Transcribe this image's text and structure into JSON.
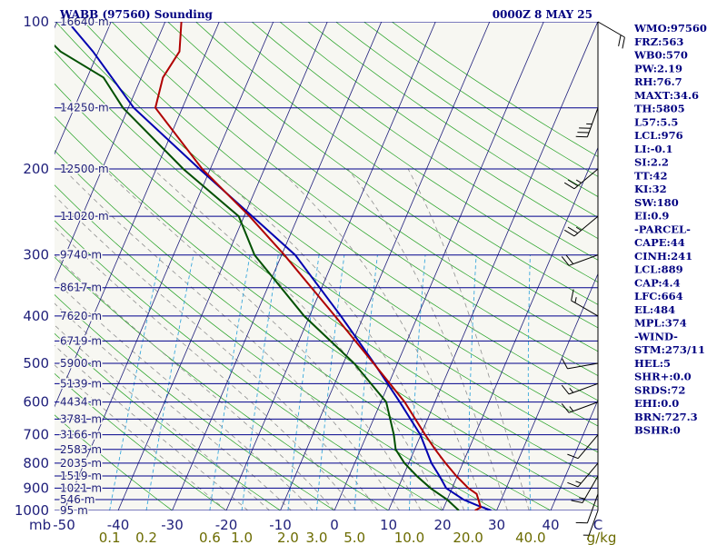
{
  "header": {
    "station": "WABB (97560) Sounding",
    "time": "0000Z  8 MAY 25"
  },
  "colors": {
    "axes": "#000060",
    "isobar": "#00008b",
    "isotherm": "#1e1e7a",
    "dry_adiabat": "#22a022",
    "moist_adiabat": "#909090",
    "mixing_ratio": "#3aa8dc",
    "temperature": "#b00000",
    "dewpoint": "#005000",
    "parcel": "#0000b0",
    "labels_left": "#1e1e7a",
    "labels_mix": "#6b6b00",
    "indices_text": "#000080"
  },
  "chart_data": {
    "type": "skew-t",
    "pressure_ticks": [
      100,
      200,
      300,
      400,
      500,
      600,
      700,
      800,
      900,
      1000
    ],
    "pressure_unit_label": "mb",
    "isobar_heights": [
      {
        "p": 100,
        "label": "16640 m"
      },
      {
        "p": 150,
        "label": "14250 m"
      },
      {
        "p": 200,
        "label": "12500 m"
      },
      {
        "p": 250,
        "label": "11020 m"
      },
      {
        "p": 300,
        "label": "9740 m"
      },
      {
        "p": 350,
        "label": "8617 m"
      },
      {
        "p": 400,
        "label": "7620 m"
      },
      {
        "p": 450,
        "label": "6719 m"
      },
      {
        "p": 500,
        "label": "5900 m"
      },
      {
        "p": 550,
        "label": "5139 m"
      },
      {
        "p": 600,
        "label": "4434 m"
      },
      {
        "p": 650,
        "label": "3781 m"
      },
      {
        "p": 700,
        "label": "3166 m"
      },
      {
        "p": 750,
        "label": "2583 m"
      },
      {
        "p": 800,
        "label": "2035 m"
      },
      {
        "p": 850,
        "label": "1519 m"
      },
      {
        "p": 900,
        "label": "1021 m"
      },
      {
        "p": 950,
        "label": "546 m"
      },
      {
        "p": 1000,
        "label": "95 m"
      }
    ],
    "temperature_ticks": [
      "-50",
      "-40",
      "-30",
      "-20",
      "-10",
      "0",
      "10",
      "20",
      "30",
      "40",
      "C"
    ],
    "mixing_ratio_ticks": [
      "0.1",
      "0.2",
      "0.6",
      "1.0",
      "2.0",
      "3.0",
      "5.0",
      "10.0",
      "20.0",
      "40.0",
      "g/kg"
    ],
    "temperature_profile": [
      {
        "p": 1000,
        "t": 26
      },
      {
        "p": 985,
        "t": 26.8
      },
      {
        "p": 925,
        "t": 25
      },
      {
        "p": 900,
        "t": 23
      },
      {
        "p": 850,
        "t": 19.8
      },
      {
        "p": 800,
        "t": 16.8
      },
      {
        "p": 750,
        "t": 13.8
      },
      {
        "p": 700,
        "t": 10.8
      },
      {
        "p": 600,
        "t": 4.4
      },
      {
        "p": 500,
        "t": -4.4
      },
      {
        "p": 400,
        "t": -15.3
      },
      {
        "p": 300,
        "t": -29.5
      },
      {
        "p": 250,
        "t": -39
      },
      {
        "p": 200,
        "t": -51.5
      },
      {
        "p": 150,
        "t": -65
      },
      {
        "p": 130,
        "t": -66
      },
      {
        "p": 115,
        "t": -65
      },
      {
        "p": 100,
        "t": -67
      }
    ],
    "dewpoint_profile": [
      {
        "p": 1000,
        "td": 23
      },
      {
        "p": 950,
        "td": 20
      },
      {
        "p": 900,
        "td": 16
      },
      {
        "p": 850,
        "td": 12.5
      },
      {
        "p": 800,
        "td": 9.2
      },
      {
        "p": 750,
        "td": 6.5
      },
      {
        "p": 700,
        "td": 5
      },
      {
        "p": 600,
        "td": 1
      },
      {
        "p": 500,
        "td": -8
      },
      {
        "p": 400,
        "td": -21
      },
      {
        "p": 300,
        "td": -35
      },
      {
        "p": 250,
        "td": -41
      },
      {
        "p": 200,
        "td": -55
      },
      {
        "p": 150,
        "td": -71
      },
      {
        "p": 130,
        "td": -77
      },
      {
        "p": 115,
        "td": -87
      },
      {
        "p": 100,
        "td": -95
      }
    ],
    "parcel_profile": [
      {
        "p": 1000,
        "t": 29
      },
      {
        "p": 976,
        "t": 26
      },
      {
        "p": 950,
        "t": 23
      },
      {
        "p": 900,
        "t": 18.9
      },
      {
        "p": 850,
        "t": 16.7
      },
      {
        "p": 800,
        "t": 14.2
      },
      {
        "p": 700,
        "t": 9.9
      },
      {
        "p": 600,
        "t": 3.5
      },
      {
        "p": 500,
        "t": -4.3
      },
      {
        "p": 400,
        "t": -14.2
      },
      {
        "p": 300,
        "t": -27.5
      },
      {
        "p": 250,
        "t": -38.5
      },
      {
        "p": 200,
        "t": -52
      },
      {
        "p": 150,
        "t": -69
      },
      {
        "p": 115,
        "t": -81
      },
      {
        "p": 100,
        "t": -88
      }
    ],
    "wind_barbs": [
      {
        "p": 1000,
        "dir": 200,
        "speed": 5
      },
      {
        "p": 925,
        "dir": 200,
        "speed": 10
      },
      {
        "p": 850,
        "dir": 210,
        "speed": 15
      },
      {
        "p": 800,
        "dir": 220,
        "speed": 15
      },
      {
        "p": 700,
        "dir": 220,
        "speed": 10
      },
      {
        "p": 600,
        "dir": 250,
        "speed": 15
      },
      {
        "p": 550,
        "dir": 250,
        "speed": 15
      },
      {
        "p": 500,
        "dir": 260,
        "speed": 10
      },
      {
        "p": 400,
        "dir": 300,
        "speed": 15
      },
      {
        "p": 300,
        "dir": 250,
        "speed": 20
      },
      {
        "p": 250,
        "dir": 230,
        "speed": 25
      },
      {
        "p": 200,
        "dir": 230,
        "speed": 25
      },
      {
        "p": 150,
        "dir": 200,
        "speed": 35
      },
      {
        "p": 100,
        "dir": 120,
        "speed": 20
      }
    ]
  },
  "indices": [
    "WMO:97560",
    "FRZ:563",
    "WB0:570",
    "PW:2.19",
    "RH:76.7",
    "MAXT:34.6",
    "TH:5805",
    "L57:5.5",
    "LCL:976",
    "LI:-0.1",
    "SI:2.2",
    "TT:42",
    "KI:32",
    "SW:180",
    "EI:0.9",
    "-PARCEL-",
    "CAPE:44",
    "CINH:241",
    "LCL:889",
    "CAP:4.4",
    "LFC:664",
    "EL:484",
    "MPL:374",
    "-WIND-",
    "STM:273/11",
    "HEL:5",
    "SHR+:0.0",
    "SRDS:72",
    "EHI:0.0",
    "BRN:727.3",
    "BSHR:0"
  ]
}
